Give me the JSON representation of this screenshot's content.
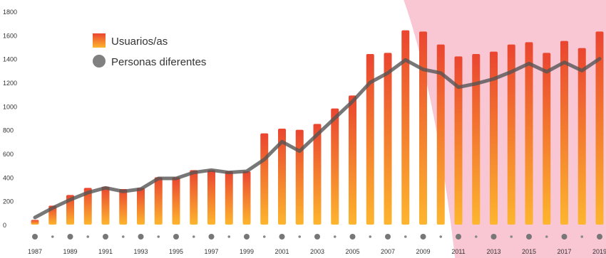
{
  "chart_data": {
    "type": "bar",
    "title": "",
    "xlabel": "",
    "ylabel": "",
    "ylim": [
      0,
      1800
    ],
    "yticks": [
      0,
      200,
      400,
      600,
      800,
      1000,
      1200,
      1400,
      1600,
      1800
    ],
    "x": [
      1987,
      1988,
      1989,
      1990,
      1991,
      1992,
      1993,
      1994,
      1995,
      1996,
      1997,
      1998,
      1999,
      2000,
      2001,
      2002,
      2003,
      2004,
      2005,
      2006,
      2007,
      2008,
      2009,
      2010,
      2011,
      2012,
      2013,
      2014,
      2015,
      2016,
      2017,
      2018,
      2019
    ],
    "xtick_labels": [
      "1987",
      "1989",
      "1991",
      "1993",
      "1995",
      "1997",
      "1999",
      "2001",
      "2003",
      "2005",
      "2007",
      "2009",
      "2011",
      "2013",
      "2015",
      "2017",
      "2019"
    ],
    "legend_position": "top-left",
    "grid": false,
    "highlight_region": {
      "from_year": 2010,
      "color": "#f9c6d4"
    },
    "series": [
      {
        "name": "Usuarios/as",
        "kind": "bar",
        "color_top": "#ea4530",
        "color_bottom": "#fdb52e",
        "values": [
          40,
          160,
          250,
          310,
          320,
          300,
          310,
          400,
          400,
          460,
          460,
          450,
          450,
          770,
          810,
          800,
          850,
          980,
          1090,
          1440,
          1450,
          1640,
          1630,
          1520,
          1420,
          1440,
          1460,
          1520,
          1540,
          1450,
          1550,
          1490,
          1630
        ]
      },
      {
        "name": "Personas diferentes",
        "kind": "line",
        "color": "#555555",
        "values": [
          60,
          140,
          210,
          270,
          310,
          280,
          300,
          390,
          390,
          440,
          460,
          440,
          450,
          550,
          700,
          620,
          760,
          900,
          1040,
          1200,
          1280,
          1390,
          1310,
          1280,
          1160,
          1190,
          1230,
          1290,
          1360,
          1290,
          1370,
          1300,
          1400
        ]
      }
    ]
  }
}
